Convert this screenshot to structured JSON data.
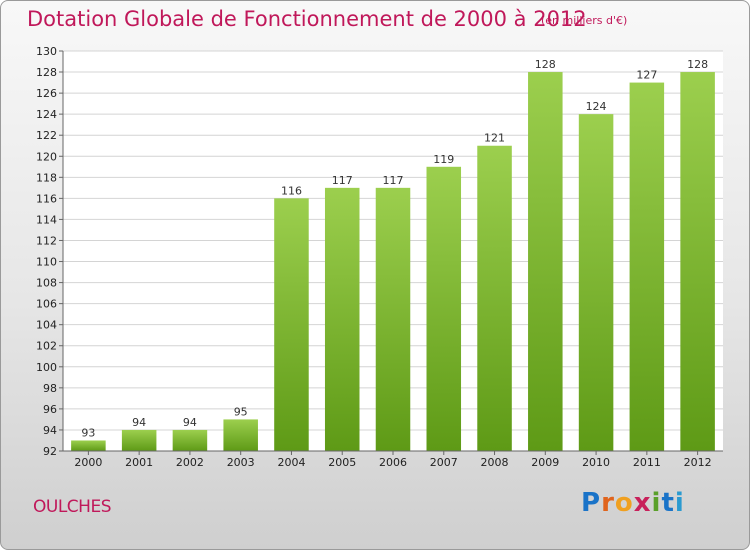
{
  "header": {
    "title": "Dotation Globale de Fonctionnement de 2000 à 2012",
    "subtitle": "(en milliers d'€)"
  },
  "footer": {
    "commune": "OULCHES",
    "brand_letters": [
      {
        "ch": "P",
        "color": "#1a73c8"
      },
      {
        "ch": "r",
        "color": "#e0641c"
      },
      {
        "ch": "o",
        "color": "#f0a020"
      },
      {
        "ch": "x",
        "color": "#c8205a"
      },
      {
        "ch": "i",
        "color": "#5aa02a"
      },
      {
        "ch": "t",
        "color": "#1a73c8"
      },
      {
        "ch": "i",
        "color": "#2a9ad0"
      }
    ]
  },
  "colors": {
    "title": "#c0185a",
    "bar_top": "#9ccf4e",
    "bar_bottom": "#5e9a16"
  },
  "chart_data": {
    "type": "bar",
    "title": "Dotation Globale de Fonctionnement de 2000 à 2012",
    "categories": [
      "2000",
      "2001",
      "2002",
      "2003",
      "2004",
      "2005",
      "2006",
      "2007",
      "2008",
      "2009",
      "2010",
      "2011",
      "2012"
    ],
    "values": [
      93,
      94,
      94,
      95,
      116,
      117,
      117,
      119,
      121,
      128,
      124,
      127,
      128
    ],
    "ylim": [
      92,
      130
    ],
    "yticks": [
      92,
      94,
      96,
      98,
      100,
      102,
      104,
      106,
      108,
      110,
      112,
      114,
      116,
      118,
      120,
      122,
      124,
      126,
      128,
      130
    ],
    "grid": true
  }
}
